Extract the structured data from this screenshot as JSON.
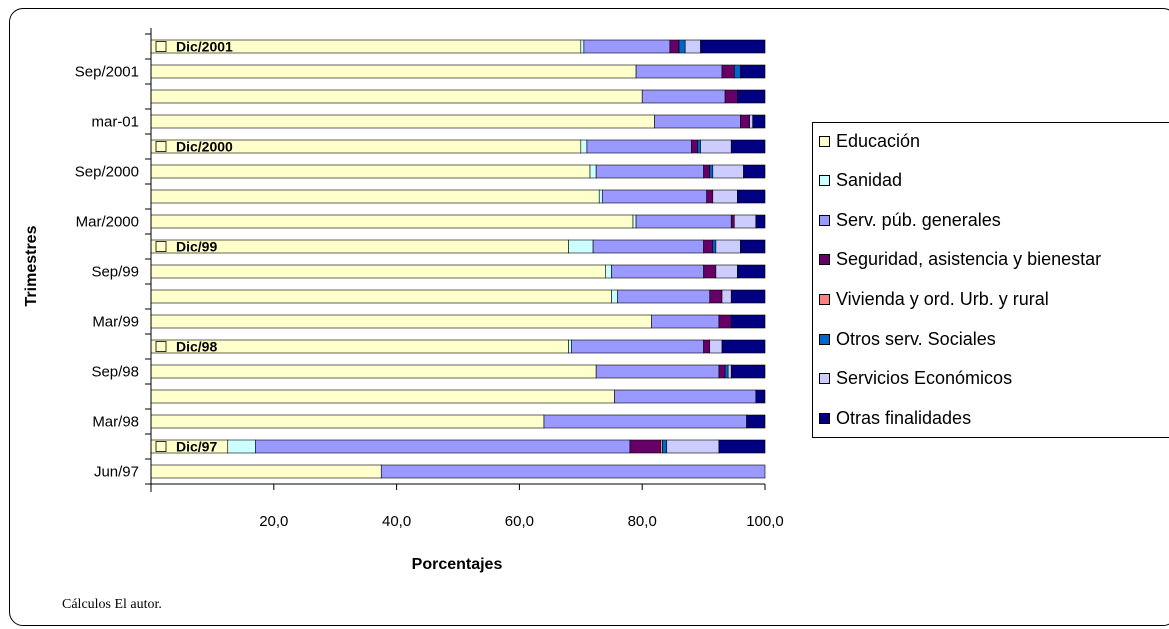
{
  "source_note": "Cálculos  El autor.",
  "chart_data": {
    "type": "bar",
    "orientation": "horizontal",
    "stacked": true,
    "xlabel": "Porcentajes",
    "ylabel": "Trimestres",
    "xlim": [
      0,
      100
    ],
    "x_ticks": [
      "20,0",
      "40,0",
      "60,0",
      "80,0",
      "100,0"
    ],
    "grid": false,
    "legend_position": "right",
    "categories": [
      "Jun/97",
      "Dic/97",
      "Mar/98",
      "",
      "Sep/98",
      "Dic/98",
      "Mar/99",
      "",
      "Sep/99",
      "Dic/99",
      "Mar/2000",
      "",
      "Sep/2000",
      "Dic/2000",
      "mar-01",
      "",
      "Sep/2001",
      "Dic/2001"
    ],
    "y_tick_labels": [
      "Jun/97",
      "",
      "Mar/98",
      "",
      "Sep/98",
      "",
      "Mar/99",
      "",
      "Sep/99",
      "",
      "Mar/2000",
      "",
      "Sep/2000",
      "",
      "mar-01",
      "",
      "Sep/2001",
      ""
    ],
    "bar_annotations": [
      {
        "category": "Dic/97",
        "text": "Dic/97"
      },
      {
        "category": "Dic/98",
        "text": "Dic/98"
      },
      {
        "category": "Dic/99",
        "text": "Dic/99"
      },
      {
        "category": "Dic/2000",
        "text": "Dic/2000"
      },
      {
        "category": "Dic/2001",
        "text": "Dic/2001"
      }
    ],
    "series": [
      {
        "name": "Educación",
        "color": "#FFFFCC",
        "values": [
          37.5,
          12.5,
          64.0,
          75.5,
          72.5,
          68.0,
          81.5,
          75.0,
          74.0,
          68.0,
          78.5,
          73.0,
          71.5,
          70.0,
          82.0,
          80.0,
          79.0,
          70.0
        ]
      },
      {
        "name": "Sanidad",
        "color": "#CCFFFF",
        "values": [
          0.0,
          4.5,
          0.0,
          0.0,
          0.0,
          0.5,
          0.0,
          1.0,
          1.0,
          4.0,
          0.5,
          0.5,
          1.0,
          1.0,
          0.0,
          0.0,
          0.0,
          0.5
        ]
      },
      {
        "name": "Serv. púb. generales",
        "color": "#9999FF",
        "values": [
          62.5,
          61.0,
          33.0,
          23.0,
          20.0,
          21.5,
          11.0,
          15.0,
          15.0,
          18.0,
          15.5,
          17.0,
          17.5,
          17.0,
          14.0,
          13.5,
          14.0,
          14.0
        ]
      },
      {
        "name": "Seguridad, asistencia y bienestar",
        "color": "#660066",
        "values": [
          0.0,
          5.0,
          0.0,
          0.0,
          1.0,
          1.0,
          2.0,
          2.0,
          2.0,
          1.5,
          0.5,
          1.0,
          1.0,
          1.0,
          1.5,
          2.0,
          2.0,
          1.5
        ]
      },
      {
        "name": "Vivienda y ord. Urb. y rural",
        "color": "#FF8080",
        "values": [
          0.0,
          0.3,
          0.0,
          0.0,
          0.0,
          0.0,
          0.0,
          0.0,
          0.0,
          0.0,
          0.0,
          0.0,
          0.0,
          0.0,
          0.0,
          0.0,
          0.0,
          0.0
        ]
      },
      {
        "name": "Otros serv. Sociales",
        "color": "#0066CC",
        "values": [
          0.0,
          0.7,
          0.0,
          0.0,
          0.5,
          0.0,
          0.0,
          0.0,
          0.0,
          0.5,
          0.0,
          0.0,
          0.5,
          0.5,
          0.0,
          0.0,
          1.0,
          1.0
        ]
      },
      {
        "name": "Servicios Económicos",
        "color": "#CCCCFF",
        "values": [
          0.0,
          8.5,
          0.0,
          0.0,
          0.5,
          2.0,
          0.0,
          1.5,
          3.5,
          4.0,
          3.5,
          4.0,
          5.0,
          5.0,
          0.5,
          0.0,
          0.0,
          2.5
        ]
      },
      {
        "name": "Otras finalidades",
        "color": "#000080",
        "values": [
          0.0,
          7.5,
          3.0,
          1.5,
          5.5,
          7.0,
          5.5,
          5.5,
          4.5,
          4.0,
          1.5,
          4.5,
          3.5,
          5.5,
          2.0,
          4.5,
          4.0,
          11.0
        ]
      }
    ]
  }
}
